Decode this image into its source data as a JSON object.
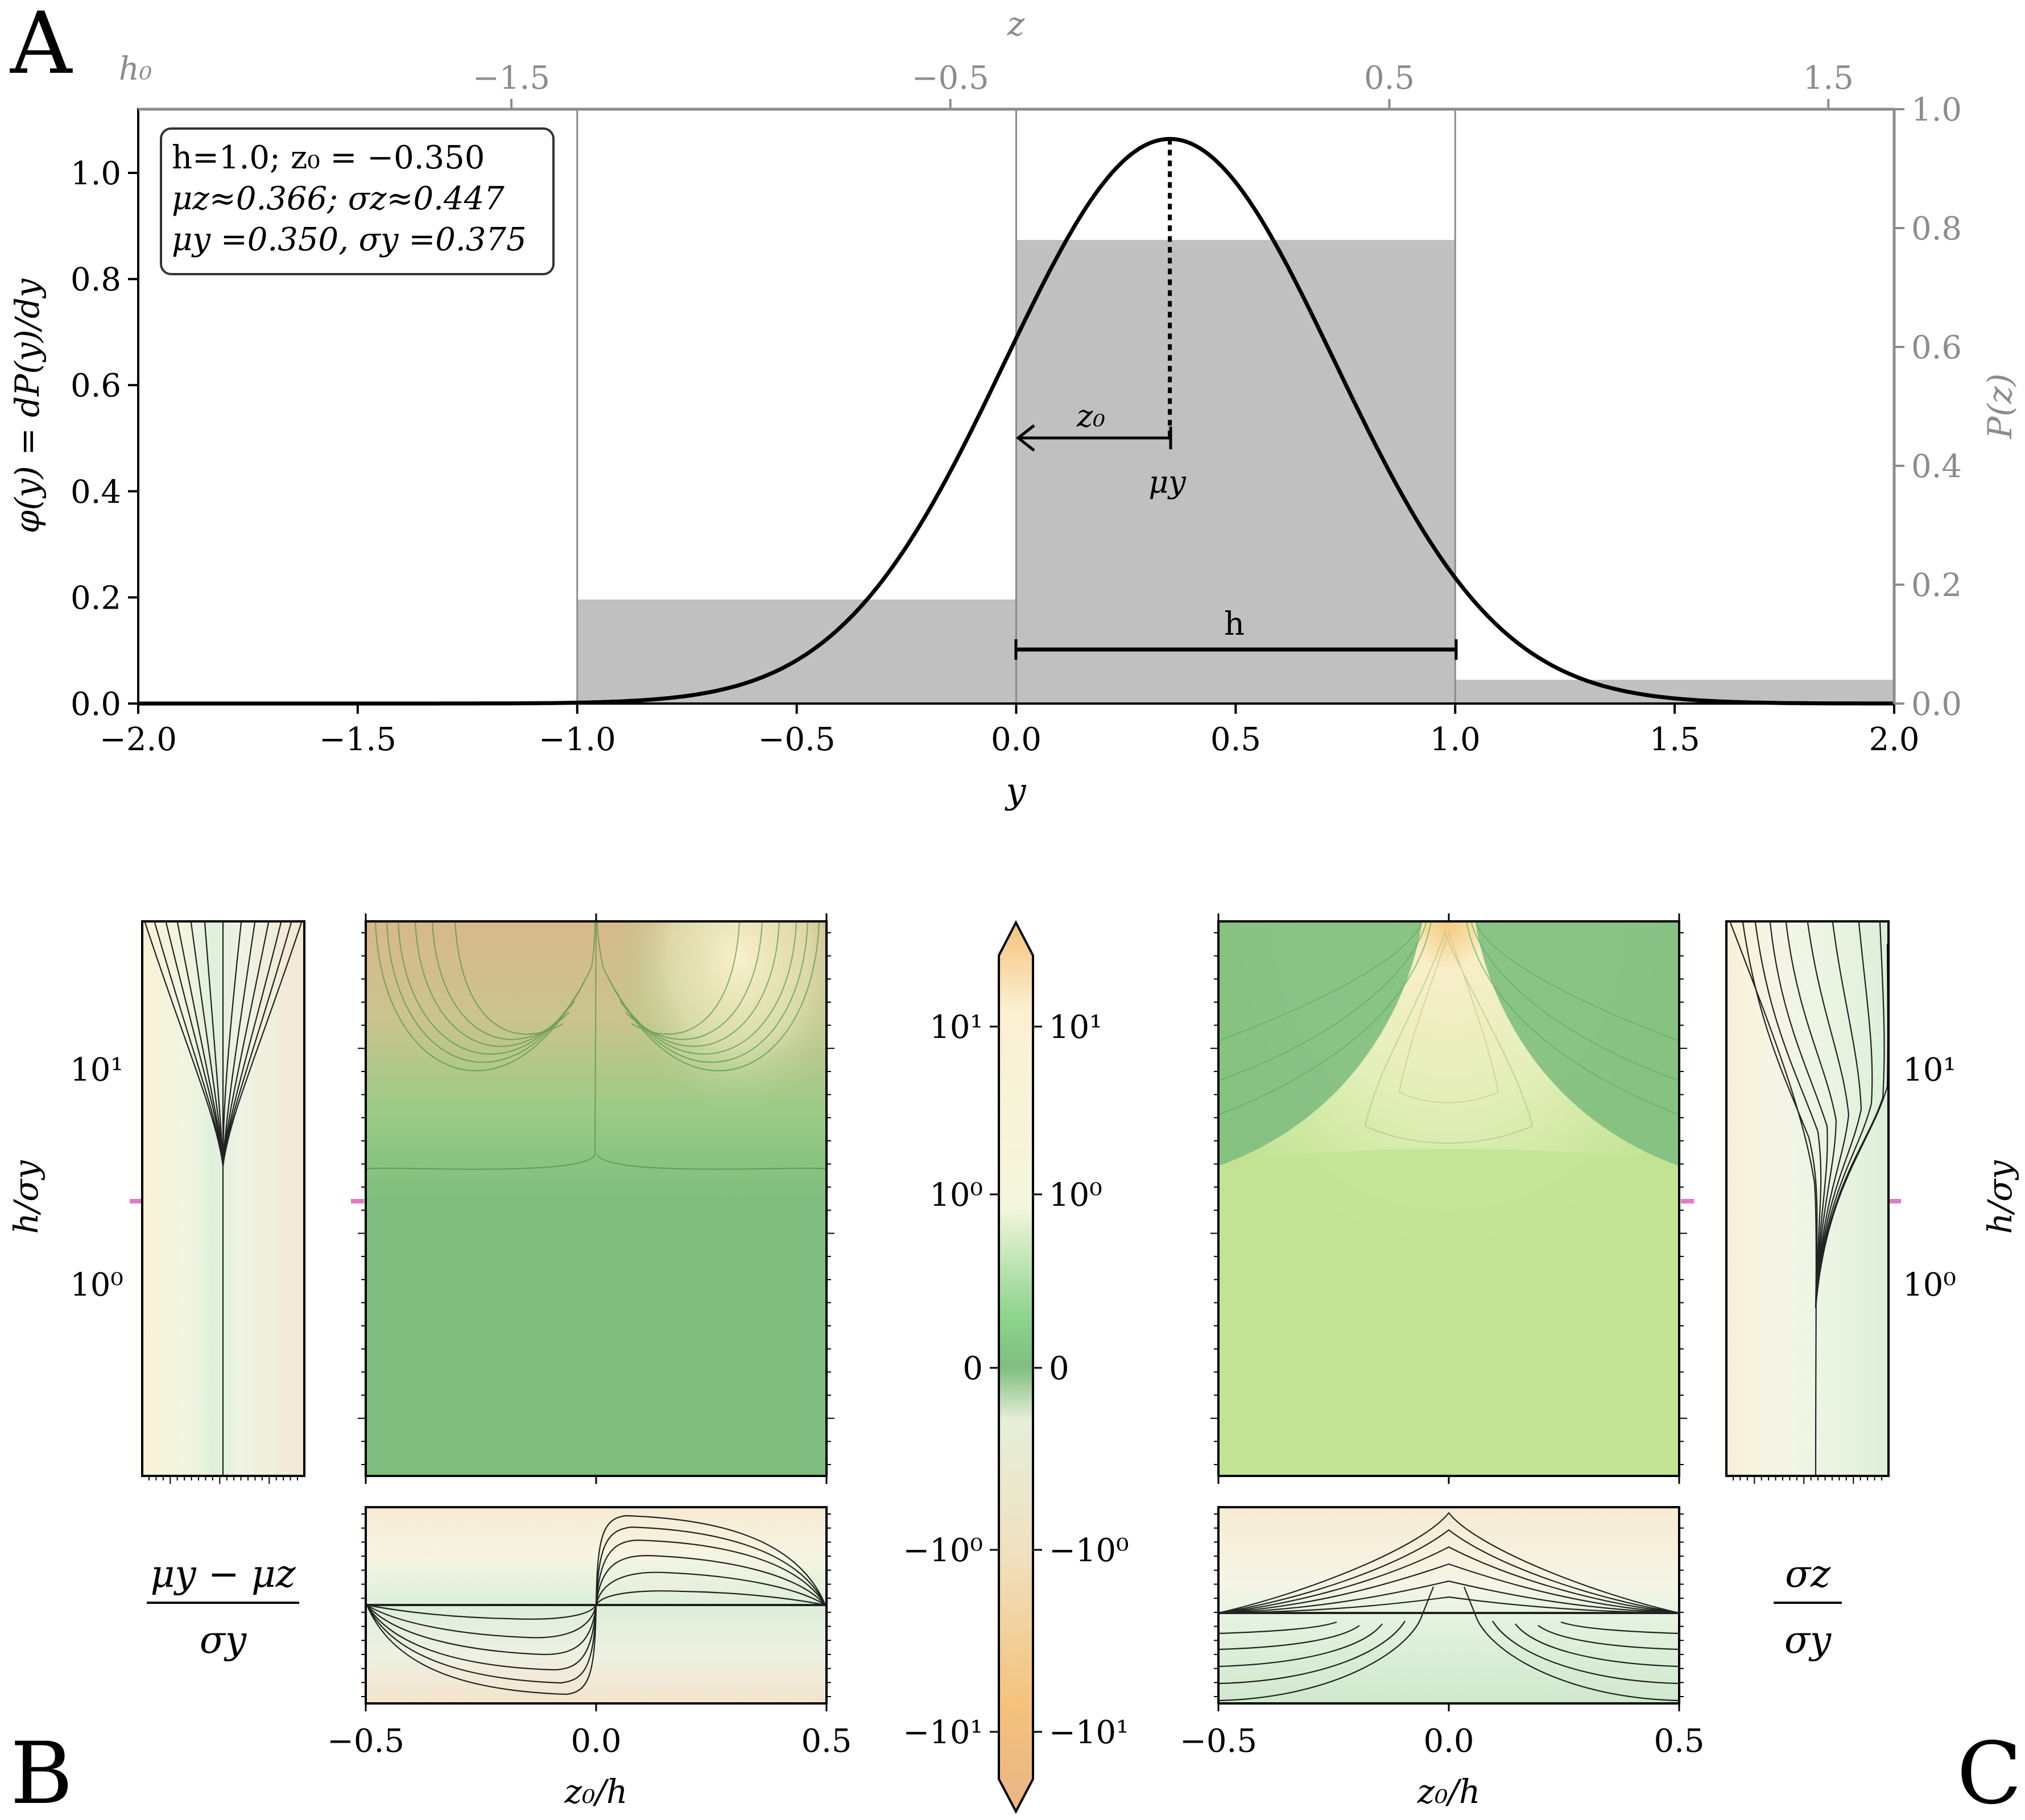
{
  "panel_letters": {
    "a": "A",
    "b": "B",
    "c": "C"
  },
  "chart_data": [
    {
      "id": "A",
      "type": "line",
      "title": "",
      "xlabel": "y",
      "ylabel": "φ(y) = dP(y)/dy",
      "secondary_ylabel": "P(z)",
      "top_xlabel": "z",
      "top_corner_label": "h₀",
      "xlim": [
        -2.0,
        2.0
      ],
      "ylim": [
        0.0,
        1.12
      ],
      "secondary_ylim": [
        0.0,
        1.0
      ],
      "grid": false,
      "x_ticks": [
        "−2.0",
        "−1.5",
        "−1.0",
        "−0.5",
        "0.0",
        "0.5",
        "1.0",
        "1.5",
        "2.0"
      ],
      "y_ticks": [
        "0.0",
        "0.2",
        "0.4",
        "0.6",
        "0.8",
        "1.0"
      ],
      "secondary_y_ticks": [
        "0.0",
        "0.2",
        "0.4",
        "0.6",
        "0.8",
        "1.0"
      ],
      "top_x_ticks": [
        {
          "value": -1.5,
          "label": "−1.5"
        },
        {
          "value": -0.5,
          "label": "−0.5"
        },
        {
          "value": 0.5,
          "label": "0.5"
        },
        {
          "value": 1.5,
          "label": "1.5"
        }
      ],
      "curve": {
        "mu_y": 0.35,
        "sigma_y": 0.375,
        "peak": 1.064
      },
      "bins": [
        {
          "from": -1.0,
          "to": 0.0,
          "P": 0.175
        },
        {
          "from": 0.0,
          "to": 1.0,
          "P": 0.78
        },
        {
          "from": 1.0,
          "to": 2.0,
          "P": 0.04
        }
      ],
      "bin_edges": [
        -1.0,
        0.0,
        1.0
      ],
      "annotations": {
        "box": [
          "h=1.0;  z₀ = −0.350",
          "μz≈0.366;  σz≈0.447",
          "μy =0.350, σy =0.375"
        ],
        "z0_label": "z₀",
        "mu_label": "μy",
        "h_label": "h"
      }
    },
    {
      "id": "B",
      "type": "heatmap",
      "title": "",
      "xlabel": "z₀/h",
      "ylabel": "h/σy",
      "x_ticks": [
        "−0.5",
        "0.0",
        "0.5"
      ],
      "y_ticks": [
        "10⁰",
        "10¹"
      ],
      "quantity_label": [
        "μy − μz",
        "σy"
      ],
      "marker_h_over_sigma": 2.5,
      "colorbar_ticks": [
        "10¹",
        "10⁰",
        "0",
        "−10⁰",
        "−10¹"
      ]
    },
    {
      "id": "C",
      "type": "heatmap",
      "title": "",
      "xlabel": "z₀/h",
      "ylabel": "h/σy",
      "x_ticks": [
        "−0.5",
        "0.0",
        "0.5"
      ],
      "y_ticks": [
        "10⁰",
        "10¹"
      ],
      "quantity_label": [
        "σz",
        "σy"
      ]
    }
  ],
  "colors": {
    "bar": "#c0c0c0",
    "curve": "#000000",
    "secondary_axis": "#8c8c8c",
    "green": "#7fbe7f",
    "light_green": "#c2e394",
    "orange": "#f5c27a",
    "marker": "#e07ac8"
  }
}
